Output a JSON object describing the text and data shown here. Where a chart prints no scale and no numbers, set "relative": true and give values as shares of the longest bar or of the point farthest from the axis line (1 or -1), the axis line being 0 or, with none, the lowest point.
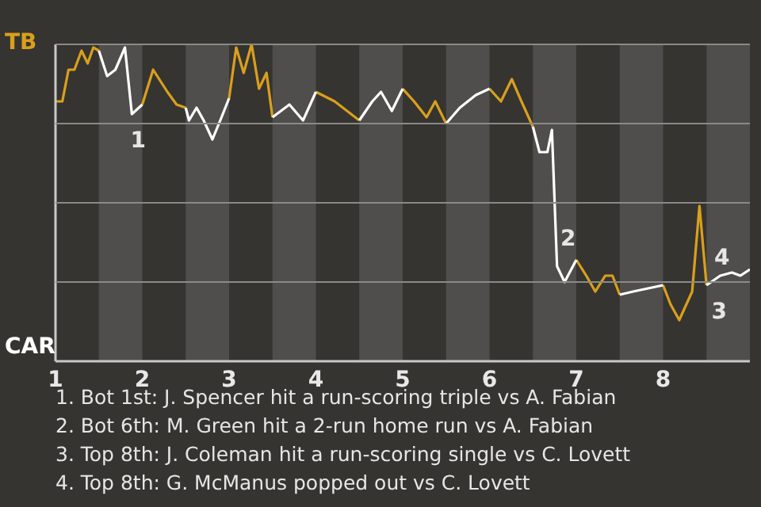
{
  "chart_data": {
    "type": "line",
    "relative": true,
    "x": [
      1,
      1.079,
      1.15,
      1.218,
      1.3,
      1.371,
      1.436,
      1.5,
      1.595,
      1.69,
      1.8,
      1.88,
      2,
      2.125,
      2.289,
      2.395,
      2.5,
      2.538,
      2.625,
      2.707,
      2.808,
      2.913,
      3,
      3.082,
      3.168,
      3.259,
      3.345,
      3.431,
      3.5,
      3.695,
      3.852,
      4,
      4.217,
      4.5,
      4.65,
      4.75,
      4.875,
      5,
      5.131,
      5.275,
      5.375,
      5.5,
      5.658,
      5.842,
      6,
      6.132,
      6.257,
      6.368,
      6.5,
      6.576,
      6.667,
      6.719,
      6.778,
      6.865,
      7,
      7.115,
      7.219,
      7.333,
      7.417,
      7.5,
      7.656,
      8,
      8.085,
      8.186,
      8.335,
      8.419,
      8.5,
      8.659,
      8.793,
      8.89,
      9
    ],
    "series": [
      {
        "color": "#d9a01c",
        "values": [
          0.82,
          0.82,
          0.92,
          0.92,
          0.98,
          0.94,
          0.99,
          0.98,
          null,
          null,
          null,
          null,
          0.81,
          0.92,
          0.85,
          0.81,
          0.8,
          null,
          null,
          null,
          null,
          null,
          0.83,
          0.99,
          0.91,
          1,
          0.86,
          0.91,
          0.77,
          null,
          null,
          0.85,
          0.82,
          0.76,
          null,
          null,
          null,
          0.86,
          0.82,
          0.77,
          0.82,
          0.75,
          null,
          null,
          0.86,
          0.82,
          0.89,
          0.82,
          0.74,
          null,
          null,
          null,
          null,
          null,
          0.32,
          0.27,
          0.22,
          0.27,
          0.27,
          0.21,
          null,
          0.24,
          0.18,
          0.13,
          0.22,
          0.49,
          0.24,
          null,
          null,
          null,
          null
        ]
      },
      {
        "color": "#ffffff",
        "values": [
          null,
          null,
          null,
          null,
          null,
          null,
          null,
          0.98,
          0.9,
          0.92,
          0.99,
          0.78,
          0.81,
          null,
          null,
          null,
          0.8,
          0.76,
          0.8,
          0.76,
          0.7,
          0.77,
          0.83,
          null,
          null,
          null,
          null,
          null,
          0.77,
          0.81,
          0.76,
          0.85,
          null,
          0.76,
          0.82,
          0.85,
          0.79,
          0.86,
          null,
          null,
          null,
          0.75,
          0.8,
          0.84,
          0.86,
          null,
          null,
          null,
          0.74,
          0.66,
          0.66,
          0.73,
          0.3,
          0.25,
          0.32,
          null,
          null,
          null,
          null,
          0.21,
          0.22,
          0.24,
          null,
          null,
          null,
          null,
          0.24,
          0.27,
          0.28,
          0.27,
          0.29
        ]
      }
    ],
    "xlim": [
      1,
      9
    ],
    "xticks": [
      1,
      2,
      3,
      4,
      5,
      6,
      7,
      8
    ],
    "grid": "y",
    "legend": false,
    "marker": "none",
    "line_style": "solid",
    "bands": [
      {
        "axis": "x",
        "from": 1.5,
        "to": 2,
        "color": "#4f4e4c"
      },
      {
        "axis": "x",
        "from": 2.5,
        "to": 3,
        "color": "#4f4e4c"
      },
      {
        "axis": "x",
        "from": 3.5,
        "to": 4,
        "color": "#4f4e4c"
      },
      {
        "axis": "x",
        "from": 4.5,
        "to": 5,
        "color": "#4f4e4c"
      },
      {
        "axis": "x",
        "from": 5.5,
        "to": 6,
        "color": "#4f4e4c"
      },
      {
        "axis": "x",
        "from": 6.5,
        "to": 7,
        "color": "#4f4e4c"
      },
      {
        "axis": "x",
        "from": 7.5,
        "to": 8,
        "color": "#4f4e4c"
      },
      {
        "axis": "x",
        "from": 8.5,
        "to": 9,
        "color": "#4f4e4c"
      }
    ],
    "annotations": [
      "TB",
      "CAR",
      {
        "text": "1",
        "x": 1.88,
        "y": 0.78
      },
      {
        "text": "2",
        "x": 6.778,
        "y": 0.3
      },
      {
        "text": "3",
        "x": 8.5,
        "y": 0.24
      },
      {
        "text": "4",
        "x": 8.659,
        "y": 0.27
      },
      "1. Bot 1st: J. Spencer hit a run-scoring triple vs A. Fabian",
      "2. Bot 6th: M. Green hit a 2-run home run vs A. Fabian",
      "3. Top 8th: J. Coleman hit a run-scoring single vs C. Lovett",
      "4. Top 8th: G. McManus popped out vs C. Lovett"
    ]
  }
}
